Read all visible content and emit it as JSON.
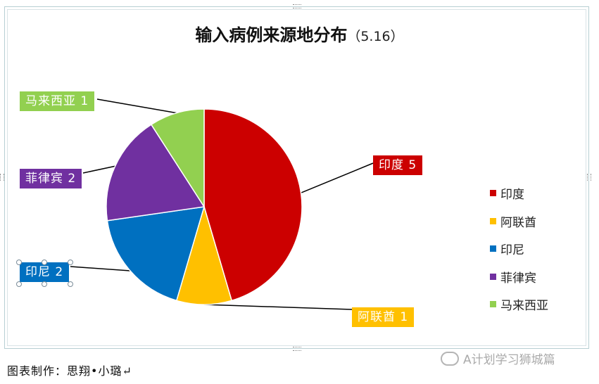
{
  "chart_data": {
    "type": "pie",
    "title": "输入病例来源地分布",
    "subtitle": "（5.16）",
    "legend_position": "right",
    "slices": [
      {
        "name": "印度",
        "value": 5,
        "color": "#cc0000",
        "label": "印度 5"
      },
      {
        "name": "阿联酋",
        "value": 1,
        "color": "#ffc000",
        "label": "阿联酋 1"
      },
      {
        "name": "印尼",
        "value": 2,
        "color": "#0070c0",
        "label": "印尼 2"
      },
      {
        "name": "菲律宾",
        "value": 2,
        "color": "#7030a0",
        "label": "菲律宾 2"
      },
      {
        "name": "马来西亚",
        "value": 1,
        "color": "#92d050",
        "label": "马来西亚 1"
      }
    ]
  },
  "footer": {
    "credit": "图表制作：思翔•小璐↵",
    "watermark": "A计划学习狮城篇"
  }
}
